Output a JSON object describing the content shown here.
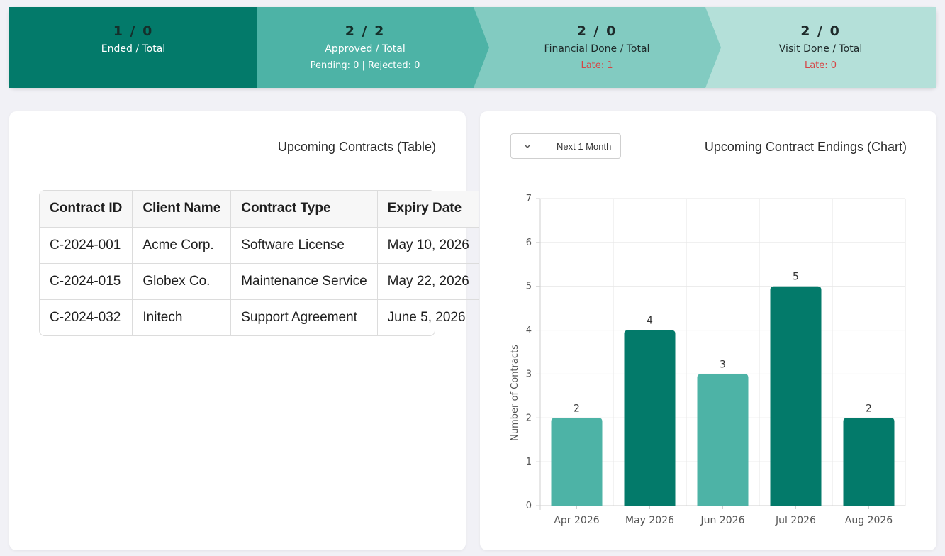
{
  "stepper": [
    {
      "count": "1 / 0",
      "label": "Ended / Total",
      "sub": ""
    },
    {
      "count": "2 / 2",
      "label": "Approved / Total",
      "sub": "Pending: 0 | Rejected: 0"
    },
    {
      "count": "2 / 0",
      "label": "Financial Done / Total",
      "sub": "Late: 1"
    },
    {
      "count": "2 / 0",
      "label": "Visit Done / Total",
      "sub": "Late: 0"
    }
  ],
  "table_card": {
    "title": "Upcoming Contracts (Table)",
    "columns": [
      "Contract ID",
      "Client Name",
      "Contract Type",
      "Expiry Date"
    ],
    "rows": [
      [
        "C-2024-001",
        "Acme Corp.",
        "Software License",
        "May 10, 2026"
      ],
      [
        "C-2024-015",
        "Globex Co.",
        "Maintenance Service",
        "May 22, 2026"
      ],
      [
        "C-2024-032",
        "Initech",
        "Support Agreement",
        "June 5, 2026"
      ]
    ]
  },
  "chart_card": {
    "title": "Upcoming Contract Endings (Chart)",
    "range_select": {
      "value": "Next 1 Month"
    }
  },
  "chart_data": {
    "type": "bar",
    "categories": [
      "Apr 2026",
      "May 2026",
      "Jun 2026",
      "Jul 2026",
      "Aug 2026"
    ],
    "values": [
      2,
      4,
      3,
      5,
      2
    ],
    "ylabel": "Number of Contracts",
    "xlabel": "",
    "ylim": [
      0,
      7
    ],
    "yticks": [
      0,
      1,
      2,
      3,
      4,
      5,
      6,
      7
    ],
    "grid": true,
    "bar_colors": [
      "#4db3a6",
      "#037a6a",
      "#4db3a6",
      "#037a6a",
      "#037a6a"
    ],
    "data_labels": true
  },
  "colors": {
    "primary": "#037a6a",
    "secondary": "#4db3a6",
    "late": "#d64545",
    "background": "#f1f1f6"
  }
}
